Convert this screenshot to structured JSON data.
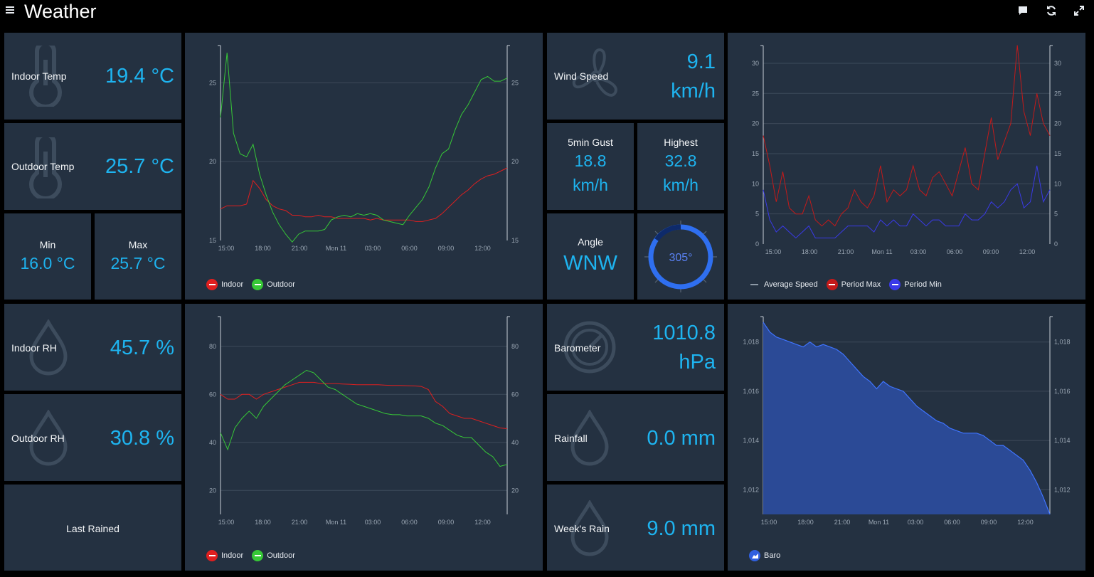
{
  "header": {
    "title": "Weather",
    "icons": [
      "menu-icon",
      "comment-icon",
      "refresh-icon",
      "fullscreen-icon"
    ]
  },
  "colors": {
    "bg": "#000000",
    "card": "#243141",
    "accent": "#1eb4f0",
    "indoor": "#e01f1f",
    "outdoor": "#37c837",
    "baro": "#3060e0"
  },
  "temp": {
    "indoor": {
      "label": "Indoor Temp",
      "value": "19.4 °C"
    },
    "outdoor": {
      "label": "Outdoor Temp",
      "value": "25.7 °C"
    },
    "min": {
      "label": "Min",
      "value": "16.0 °C"
    },
    "max": {
      "label": "Max",
      "value": "25.7 °C"
    }
  },
  "humidity": {
    "indoor": {
      "label": "Indoor RH",
      "value": "45.7 %"
    },
    "outdoor": {
      "label": "Outdoor RH",
      "value": "30.8 %"
    },
    "last_rained": {
      "label": "Last Rained"
    }
  },
  "wind": {
    "speed": {
      "label": "Wind Speed",
      "value": "9.1",
      "unit": "km/h"
    },
    "gust": {
      "label": "5min Gust",
      "value": "18.8",
      "unit": "km/h"
    },
    "highest": {
      "label": "Highest",
      "value": "32.8",
      "unit": "km/h"
    },
    "angle": {
      "label": "Angle",
      "value": "WNW",
      "degrees": "305°"
    }
  },
  "pressure": {
    "barometer": {
      "label": "Barometer",
      "value": "1010.8",
      "unit": "hPa"
    },
    "rainfall": {
      "label": "Rainfall",
      "value": "0.0 mm"
    },
    "week_rain": {
      "label": "Week's Rain",
      "value": "9.0 mm"
    }
  },
  "chart_data": [
    {
      "type": "line",
      "ylim": [
        15,
        27
      ],
      "yticks": [
        15,
        20,
        25
      ],
      "xticks": [
        "15:00",
        "18:00",
        "21:00",
        "Mon 11",
        "03:00",
        "06:00",
        "09:00",
        "12:00"
      ],
      "series": [
        {
          "name": "Indoor",
          "color": "#e01f1f",
          "values": [
            17.0,
            17.2,
            17.2,
            17.2,
            17.3,
            18.8,
            18.3,
            17.6,
            17.2,
            17.0,
            16.9,
            16.6,
            16.6,
            16.5,
            16.5,
            16.6,
            16.5,
            16.5,
            16.4,
            16.4,
            16.4,
            16.4,
            16.4,
            16.3,
            16.4,
            16.3,
            16.3,
            16.3,
            16.3,
            16.3,
            16.2,
            16.2,
            16.3,
            16.4,
            16.7,
            17.1,
            17.5,
            17.9,
            18.2,
            18.6,
            18.9,
            19.1,
            19.2,
            19.4,
            19.6
          ]
        },
        {
          "name": "Outdoor",
          "color": "#37c837",
          "values": [
            22.8,
            26.9,
            21.8,
            20.5,
            20.3,
            21.1,
            19.2,
            17.9,
            16.8,
            16.0,
            15.4,
            14.9,
            15.4,
            15.6,
            15.6,
            15.6,
            15.7,
            16.3,
            16.5,
            16.6,
            16.5,
            16.7,
            16.6,
            16.7,
            16.6,
            16.3,
            16.2,
            16.1,
            16.0,
            16.6,
            17.1,
            17.6,
            18.4,
            19.6,
            20.5,
            20.8,
            22.0,
            23.0,
            23.6,
            24.4,
            25.2,
            25.4,
            25.1,
            25.1,
            25.3
          ]
        }
      ]
    },
    {
      "type": "line",
      "ylim": [
        10,
        90
      ],
      "yticks": [
        20,
        40,
        60,
        80
      ],
      "xticks": [
        "15:00",
        "18:00",
        "21:00",
        "Mon 11",
        "03:00",
        "06:00",
        "09:00",
        "12:00"
      ],
      "series": [
        {
          "name": "Indoor",
          "color": "#e01f1f",
          "values": [
            60,
            58,
            58,
            60,
            60,
            58,
            60,
            61,
            62,
            63,
            64,
            65,
            65,
            65,
            64.5,
            64.5,
            64.5,
            64.3,
            64.2,
            64,
            64,
            64,
            64,
            63.8,
            63.7,
            63.7,
            63.6,
            63.5,
            63.3,
            62,
            57,
            55,
            52,
            51,
            50,
            50,
            49,
            48,
            47,
            46,
            45.7
          ]
        },
        {
          "name": "Outdoor",
          "color": "#37c837",
          "values": [
            44,
            37,
            46,
            50,
            53,
            50,
            55,
            58,
            61,
            64,
            66,
            68,
            70,
            69,
            66,
            63,
            62,
            60,
            58,
            56,
            55,
            54,
            53,
            52,
            51.5,
            51.5,
            51,
            51,
            51,
            50,
            48,
            47,
            45,
            43,
            42,
            42,
            39,
            36,
            34,
            30,
            30.8
          ]
        }
      ]
    },
    {
      "type": "line",
      "ylim": [
        0,
        32
      ],
      "yticks": [
        0,
        5,
        10,
        15,
        20,
        25,
        30
      ],
      "xticks": [
        "15:00",
        "18:00",
        "21:00",
        "Mon 11",
        "03:00",
        "06:00",
        "09:00",
        "12:00"
      ],
      "series": [
        {
          "name": "Average Speed",
          "color": "#8d99a6",
          "values": []
        },
        {
          "name": "Period Max",
          "color": "#c41a1a",
          "values": [
            18,
            13,
            7,
            12,
            6,
            5,
            5,
            8,
            4,
            3,
            4,
            3,
            5,
            6,
            9,
            7,
            6,
            8,
            13,
            7,
            9,
            8,
            9,
            13,
            9,
            8,
            11,
            12,
            10,
            8,
            12,
            16,
            10,
            9,
            15,
            21,
            14,
            17,
            20,
            33,
            22,
            18,
            25,
            20,
            18
          ]
        },
        {
          "name": "Period Min",
          "color": "#3a3ae8",
          "values": [
            9,
            4,
            2,
            3,
            2,
            1,
            2,
            3,
            1,
            1,
            1,
            1,
            2,
            3,
            3,
            3,
            3,
            2,
            4,
            3,
            4,
            3,
            3,
            5,
            4,
            3,
            4,
            4,
            3,
            3,
            3,
            5,
            4,
            4,
            5,
            7,
            6,
            7,
            9,
            10,
            6,
            7,
            13,
            7,
            9
          ]
        }
      ]
    },
    {
      "type": "area",
      "ylim": [
        1011,
        1018.8
      ],
      "yticks": [
        1012,
        1014,
        1016,
        1018
      ],
      "ytick_labels": [
        "1,012",
        "1,014",
        "1,016",
        "1,018"
      ],
      "xticks": [
        "15:00",
        "18:00",
        "21:00",
        "Mon 11",
        "03:00",
        "06:00",
        "09:00",
        "12:00"
      ],
      "series": [
        {
          "name": "Baro",
          "color": "#3060e0",
          "values": [
            1018.8,
            1018.4,
            1018.2,
            1018.1,
            1018.0,
            1017.9,
            1017.8,
            1018.0,
            1017.8,
            1017.9,
            1017.8,
            1017.7,
            1017.5,
            1017.2,
            1016.9,
            1016.6,
            1016.4,
            1016.1,
            1016.4,
            1016.2,
            1016.1,
            1016.0,
            1015.7,
            1015.4,
            1015.2,
            1015.0,
            1014.8,
            1014.7,
            1014.5,
            1014.4,
            1014.3,
            1014.3,
            1014.3,
            1014.2,
            1014.0,
            1013.8,
            1013.8,
            1013.6,
            1013.4,
            1013.2,
            1012.8,
            1012.3,
            1011.7,
            1011.0
          ]
        }
      ]
    }
  ]
}
